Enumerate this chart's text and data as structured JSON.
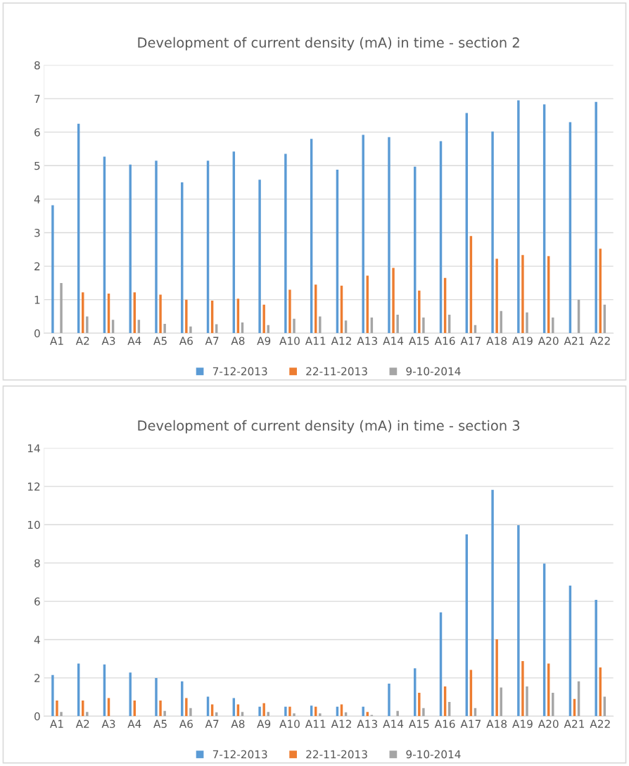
{
  "chart_data": [
    {
      "type": "bar",
      "title": "Development of current density (mA) in time - section 2",
      "categories": [
        "A1",
        "A2",
        "A3",
        "A4",
        "A5",
        "A6",
        "A7",
        "A8",
        "A9",
        "A10",
        "A11",
        "A12",
        "A13",
        "A14",
        "A15",
        "A16",
        "A17",
        "A18",
        "A19",
        "A20",
        "A21",
        "A22"
      ],
      "series": [
        {
          "name": "7-12-2013",
          "color": "#5b9bd5",
          "values": [
            3.82,
            6.25,
            5.27,
            5.03,
            5.15,
            4.5,
            5.15,
            5.42,
            4.58,
            5.35,
            5.8,
            4.88,
            5.92,
            5.85,
            4.97,
            5.73,
            6.57,
            6.02,
            6.95,
            6.83,
            6.3,
            6.9
          ]
        },
        {
          "name": "22-11-2013",
          "color": "#ed7d31",
          "values": [
            null,
            1.22,
            1.18,
            1.22,
            1.15,
            1.0,
            0.97,
            1.03,
            0.85,
            1.3,
            1.45,
            1.42,
            1.72,
            1.95,
            1.27,
            1.65,
            2.9,
            2.22,
            2.33,
            2.3,
            null,
            2.52
          ]
        },
        {
          "name": "9-10-2014",
          "color": "#a5a5a5",
          "values": [
            1.5,
            0.5,
            0.4,
            0.4,
            0.28,
            0.2,
            0.27,
            0.32,
            0.24,
            0.43,
            0.5,
            0.38,
            0.47,
            0.55,
            0.47,
            0.55,
            0.24,
            0.66,
            0.62,
            0.47,
            1.0,
            0.85
          ]
        }
      ],
      "ylim": [
        0,
        8
      ],
      "yticks": [
        0,
        1,
        2,
        3,
        4,
        5,
        6,
        7,
        8
      ],
      "grid": "y",
      "legend": "bottom"
    },
    {
      "type": "bar",
      "title": "Development of current density (mA) in time - section 3",
      "categories": [
        "A1",
        "A2",
        "A3",
        "A4",
        "A5",
        "A6",
        "A7",
        "A8",
        "A9",
        "A10",
        "A11",
        "A12",
        "A13",
        "A14",
        "A15",
        "A16",
        "A17",
        "A18",
        "A19",
        "A20",
        "A21",
        "A22"
      ],
      "series": [
        {
          "name": "7-12-2013",
          "color": "#5b9bd5",
          "values": [
            2.15,
            2.75,
            2.7,
            2.28,
            2.0,
            1.82,
            1.02,
            0.95,
            0.5,
            0.5,
            0.55,
            0.5,
            0.5,
            1.7,
            2.5,
            5.42,
            9.5,
            11.82,
            9.97,
            7.97,
            6.82,
            6.08
          ]
        },
        {
          "name": "22-11-2013",
          "color": "#ed7d31",
          "values": [
            0.82,
            0.82,
            0.95,
            0.82,
            0.82,
            0.95,
            0.62,
            0.62,
            0.68,
            0.5,
            0.5,
            0.62,
            0.22,
            null,
            1.22,
            1.55,
            2.42,
            4.02,
            2.88,
            2.75,
            0.9,
            2.55
          ]
        },
        {
          "name": "9-10-2014",
          "color": "#a5a5a5",
          "values": [
            0.22,
            0.22,
            null,
            null,
            0.28,
            0.42,
            0.2,
            0.22,
            0.22,
            0.15,
            0.15,
            0.2,
            0.07,
            0.28,
            0.42,
            0.75,
            0.42,
            1.5,
            1.55,
            1.22,
            1.82,
            1.02
          ]
        }
      ],
      "ylim": [
        0,
        14
      ],
      "yticks": [
        0,
        2,
        4,
        6,
        8,
        10,
        12,
        14
      ],
      "grid": "y",
      "legend": "bottom"
    }
  ]
}
